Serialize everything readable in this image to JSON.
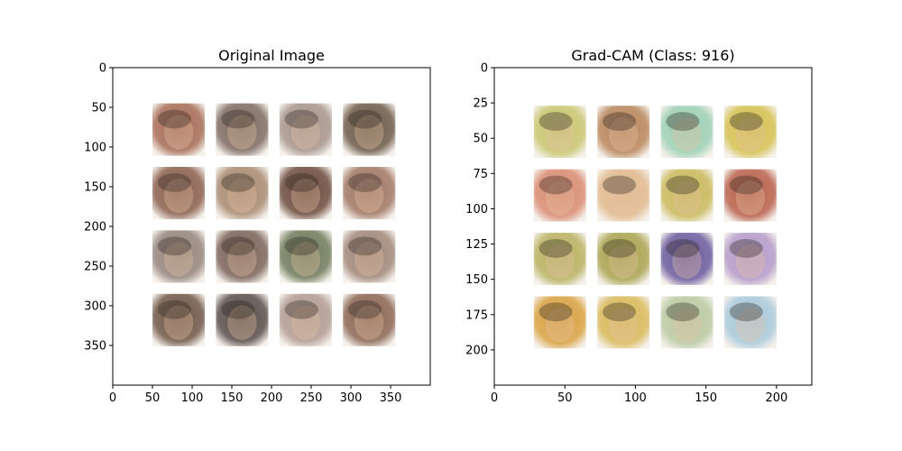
{
  "chart_data": [
    {
      "type": "heatmap",
      "title": "Original Image",
      "xlim": [
        0,
        400
      ],
      "ylim": [
        400,
        0
      ],
      "x_ticks": [
        0,
        50,
        100,
        150,
        200,
        250,
        300,
        350
      ],
      "y_ticks": [
        0,
        50,
        100,
        150,
        200,
        250,
        300,
        350
      ],
      "grid": false,
      "tiles": {
        "rows": 4,
        "cols": 4,
        "x_starts": [
          50,
          130,
          210,
          290
        ],
        "y_starts": [
          45,
          125,
          205,
          285
        ],
        "size": 66
      },
      "tile_colors": [
        [
          "#a66b55",
          "#7d6a60",
          "#a5938a",
          "#6c5a48"
        ],
        [
          "#8a5f4d",
          "#a88a70",
          "#6c4a3c",
          "#a07663"
        ],
        [
          "#94847a",
          "#7a6258",
          "#6f7a5a",
          "#a08678"
        ],
        [
          "#6f5646",
          "#5a4d48",
          "#b09a90",
          "#8a6552"
        ]
      ]
    },
    {
      "type": "heatmap",
      "title": "Grad-CAM (Class: 916)",
      "xlim": [
        0,
        225
      ],
      "ylim": [
        225,
        0
      ],
      "x_ticks": [
        0,
        50,
        100,
        150,
        200
      ],
      "y_ticks": [
        0,
        25,
        50,
        75,
        100,
        125,
        150,
        175,
        200
      ],
      "grid": false,
      "tiles": {
        "rows": 4,
        "cols": 4,
        "x_starts": [
          28,
          73,
          118,
          163
        ],
        "y_starts": [
          27,
          72,
          117,
          162
        ],
        "size": 37
      },
      "tile_colors": [
        [
          "#c8c46e",
          "#b8855a",
          "#9ccfb2",
          "#d4c050"
        ],
        [
          "#d88a70",
          "#e0b88c",
          "#c8b85a",
          "#b8604a"
        ],
        [
          "#b8b060",
          "#a8a24e",
          "#6a5a9c",
          "#b49ac8"
        ],
        [
          "#d8a040",
          "#d8b858",
          "#b8c8a0",
          "#a8c8d8"
        ]
      ]
    }
  ]
}
